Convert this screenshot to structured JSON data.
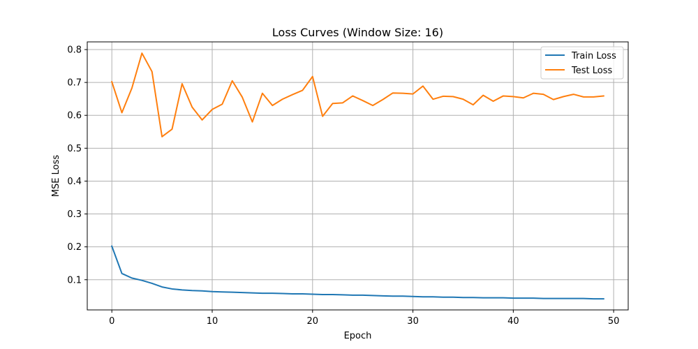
{
  "chart_data": {
    "type": "line",
    "title": "Loss Curves (Window Size: 16)",
    "xlabel": "Epoch",
    "ylabel": "MSE Loss",
    "xlim": [
      -2.45,
      51.45
    ],
    "ylim": [
      0.0082,
      0.8234
    ],
    "xticks": [
      0,
      10,
      20,
      30,
      40,
      50
    ],
    "yticks": [
      0.1,
      0.2,
      0.3,
      0.4,
      0.5,
      0.6,
      0.7,
      0.8
    ],
    "grid": true,
    "legend_position": "top-right",
    "x": [
      0,
      1,
      2,
      3,
      4,
      5,
      6,
      7,
      8,
      9,
      10,
      11,
      12,
      13,
      14,
      15,
      16,
      17,
      18,
      19,
      20,
      21,
      22,
      23,
      24,
      25,
      26,
      27,
      28,
      29,
      30,
      31,
      32,
      33,
      34,
      35,
      36,
      37,
      38,
      39,
      40,
      41,
      42,
      43,
      44,
      45,
      46,
      47,
      48,
      49
    ],
    "series": [
      {
        "name": "Train Loss",
        "color": "#1f77b4",
        "values": [
          0.202,
          0.119,
          0.105,
          0.098,
          0.089,
          0.078,
          0.072,
          0.069,
          0.067,
          0.066,
          0.064,
          0.063,
          0.062,
          0.061,
          0.06,
          0.059,
          0.059,
          0.058,
          0.057,
          0.057,
          0.056,
          0.055,
          0.055,
          0.054,
          0.053,
          0.053,
          0.052,
          0.051,
          0.05,
          0.05,
          0.049,
          0.048,
          0.048,
          0.047,
          0.047,
          0.046,
          0.046,
          0.045,
          0.045,
          0.045,
          0.044,
          0.044,
          0.044,
          0.043,
          0.043,
          0.043,
          0.043,
          0.043,
          0.042,
          0.042
        ]
      },
      {
        "name": "Test Loss",
        "color": "#ff7f0e",
        "values": [
          0.702,
          0.608,
          0.683,
          0.789,
          0.733,
          0.535,
          0.558,
          0.696,
          0.625,
          0.586,
          0.618,
          0.634,
          0.705,
          0.655,
          0.58,
          0.667,
          0.63,
          0.649,
          0.663,
          0.676,
          0.718,
          0.597,
          0.636,
          0.638,
          0.659,
          0.645,
          0.63,
          0.648,
          0.668,
          0.667,
          0.665,
          0.689,
          0.649,
          0.658,
          0.657,
          0.649,
          0.632,
          0.661,
          0.643,
          0.659,
          0.657,
          0.653,
          0.667,
          0.664,
          0.648,
          0.657,
          0.664,
          0.656,
          0.656,
          0.659
        ]
      }
    ]
  }
}
